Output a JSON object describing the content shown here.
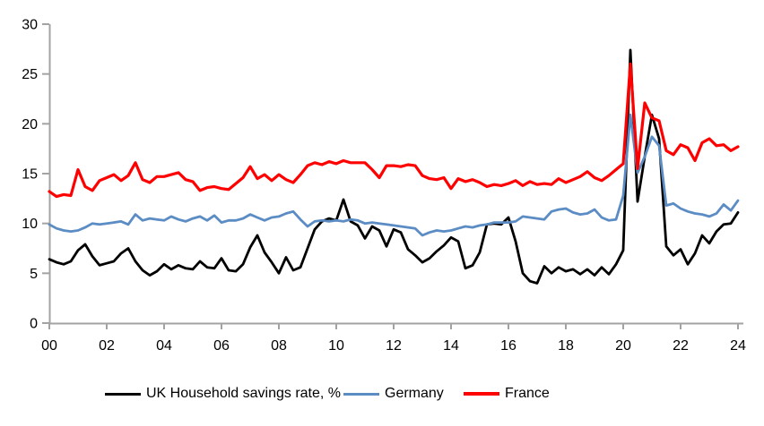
{
  "chart_data": {
    "type": "line",
    "title": "",
    "frequency": "quarterly",
    "period_start": "2000 Q1",
    "period_end": "2024 Q1",
    "xlabel": "",
    "ylabel": "",
    "ylim": [
      0,
      30
    ],
    "y_tick_step": 5,
    "grid": false,
    "legend_position": "bottom",
    "axis_color": "#a3a3a3",
    "x_tick_labels": [
      "00",
      "02",
      "04",
      "06",
      "08",
      "10",
      "12",
      "14",
      "16",
      "18",
      "20",
      "22",
      "24"
    ],
    "y_tick_labels": [
      "0",
      "5",
      "10",
      "15",
      "20",
      "25",
      "30"
    ],
    "series": [
      {
        "name": "UK Household savings rate, %",
        "color": "#000000",
        "values": [
          6.4,
          6.1,
          5.9,
          6.2,
          7.3,
          7.9,
          6.7,
          5.8,
          6.0,
          6.2,
          7.0,
          7.5,
          6.2,
          5.3,
          4.8,
          5.2,
          5.9,
          5.4,
          5.8,
          5.5,
          5.4,
          6.2,
          5.6,
          5.5,
          6.5,
          5.3,
          5.2,
          5.9,
          7.6,
          8.8,
          7.1,
          6.1,
          5.0,
          6.6,
          5.3,
          5.6,
          7.5,
          9.4,
          10.2,
          10.5,
          10.3,
          12.4,
          10.2,
          9.8,
          8.5,
          9.7,
          9.3,
          7.7,
          9.4,
          9.1,
          7.4,
          6.8,
          6.1,
          6.5,
          7.2,
          7.8,
          8.6,
          8.2,
          5.5,
          5.8,
          7.1,
          9.9,
          10.0,
          9.9,
          10.6,
          8.2,
          5.0,
          4.2,
          4.0,
          5.7,
          5.0,
          5.6,
          5.2,
          5.4,
          4.9,
          5.4,
          4.8,
          5.6,
          4.9,
          5.9,
          7.3,
          27.4,
          12.2,
          16.7,
          20.9,
          18.5,
          7.7,
          6.8,
          7.4,
          5.9,
          7.0,
          8.8,
          8.0,
          9.2,
          9.9,
          10.0,
          11.1
        ]
      },
      {
        "name": "Germany",
        "color": "#5b8cc4",
        "values": [
          9.9,
          9.5,
          9.3,
          9.2,
          9.3,
          9.6,
          10.0,
          9.9,
          10.0,
          10.1,
          10.2,
          9.9,
          10.9,
          10.3,
          10.5,
          10.4,
          10.3,
          10.7,
          10.4,
          10.2,
          10.5,
          10.7,
          10.3,
          10.8,
          10.1,
          10.3,
          10.3,
          10.5,
          10.9,
          10.6,
          10.3,
          10.6,
          10.7,
          11.0,
          11.2,
          10.4,
          9.7,
          10.2,
          10.3,
          10.2,
          10.3,
          10.2,
          10.4,
          10.3,
          10.0,
          10.1,
          10.0,
          9.9,
          9.8,
          9.7,
          9.6,
          9.5,
          8.8,
          9.1,
          9.3,
          9.2,
          9.3,
          9.5,
          9.7,
          9.6,
          9.8,
          9.9,
          10.1,
          10.1,
          10.1,
          10.2,
          10.7,
          10.6,
          10.5,
          10.4,
          11.2,
          11.4,
          11.5,
          11.1,
          10.9,
          11.0,
          11.4,
          10.6,
          10.3,
          10.4,
          12.8,
          20.9,
          15.1,
          16.7,
          18.7,
          17.8,
          11.8,
          12.0,
          11.5,
          11.2,
          11.0,
          10.9,
          10.7,
          11.0,
          11.9,
          11.3,
          12.3
        ]
      },
      {
        "name": "France",
        "color": "#ff0000",
        "values": [
          13.2,
          12.7,
          12.9,
          12.8,
          15.4,
          13.7,
          13.3,
          14.3,
          14.6,
          14.9,
          14.3,
          14.8,
          16.1,
          14.4,
          14.1,
          14.7,
          14.7,
          14.9,
          15.1,
          14.4,
          14.2,
          13.3,
          13.6,
          13.7,
          13.5,
          13.4,
          14.0,
          14.6,
          15.7,
          14.5,
          14.9,
          14.3,
          14.9,
          14.4,
          14.1,
          14.9,
          15.8,
          16.1,
          15.9,
          16.2,
          16.0,
          16.3,
          16.1,
          16.1,
          16.1,
          15.4,
          14.6,
          15.8,
          15.8,
          15.7,
          15.9,
          15.8,
          14.8,
          14.5,
          14.4,
          14.6,
          13.5,
          14.5,
          14.2,
          14.4,
          14.1,
          13.7,
          13.9,
          13.8,
          14.0,
          14.3,
          13.8,
          14.2,
          13.9,
          14.0,
          13.9,
          14.5,
          14.1,
          14.4,
          14.7,
          15.2,
          14.6,
          14.3,
          14.8,
          15.4,
          16.0,
          26.0,
          15.5,
          22.1,
          20.6,
          20.3,
          17.3,
          16.9,
          17.9,
          17.6,
          16.3,
          18.1,
          18.5,
          17.8,
          17.9,
          17.3,
          17.7
        ]
      }
    ]
  }
}
